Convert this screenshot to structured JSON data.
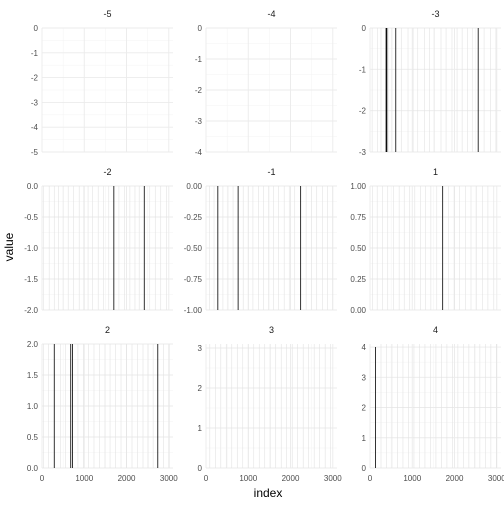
{
  "chart_data": {
    "type": "faceted-spike",
    "xlabel": "index",
    "ylabel": "value",
    "xlim": [
      0,
      3100
    ],
    "x_ticks": [
      0,
      1000,
      2000,
      3000
    ],
    "x_tick_labels": [
      "0",
      "1000",
      "2000",
      "3000"
    ],
    "panels": [
      {
        "label": "-5",
        "ylim": [
          -5,
          0
        ],
        "y_ticks": [
          0,
          -1,
          -2,
          -3,
          -4,
          -5
        ],
        "y_tick_labels": [
          "0",
          "-1",
          "-2",
          "-3",
          "-4",
          "-5"
        ],
        "show_x_ticks": false,
        "spikes": [],
        "faint_x": []
      },
      {
        "label": "-4",
        "ylim": [
          -4,
          0
        ],
        "y_ticks": [
          0,
          -1,
          -2,
          -3,
          -4
        ],
        "y_tick_labels": [
          "0",
          "-1",
          "-2",
          "-3",
          "-4"
        ],
        "show_x_ticks": false,
        "spikes": [],
        "faint_x": []
      },
      {
        "label": "-3",
        "ylim": [
          -3,
          0
        ],
        "y_ticks": [
          0,
          -1,
          -2,
          -3
        ],
        "y_tick_labels": [
          "0",
          "-1",
          "-2",
          "-3"
        ],
        "show_x_ticks": false,
        "spikes": [
          {
            "x": 380,
            "value": -3
          },
          {
            "x": 400,
            "value": -3
          },
          {
            "x": 610,
            "value": -3
          },
          {
            "x": 2560,
            "value": -3
          }
        ],
        "faint_x": [
          50,
          180,
          260,
          430,
          520,
          740,
          900,
          1020,
          1130,
          1290,
          1410,
          1520,
          1680,
          1800,
          1940,
          2060,
          2180,
          2310,
          2420,
          2700,
          2850,
          2980
        ]
      },
      {
        "label": "-2",
        "ylim": [
          -2,
          0
        ],
        "y_ticks": [
          0,
          -0.5,
          -1,
          -1.5,
          -2
        ],
        "y_tick_labels": [
          "0.0",
          "-0.5",
          "-1.0",
          "-1.5",
          "-2.0"
        ],
        "show_x_ticks": false,
        "spikes": [
          {
            "x": 1700,
            "value": -2
          },
          {
            "x": 2420,
            "value": -2
          }
        ],
        "faint_x": [
          30,
          170,
          290,
          390,
          500,
          620,
          750,
          880,
          990,
          1090,
          1200,
          1330,
          1460,
          1580,
          1820,
          1950,
          2080,
          2200,
          2300,
          2550,
          2680,
          2810,
          2950
        ]
      },
      {
        "label": "-1",
        "ylim": [
          -1,
          0
        ],
        "y_ticks": [
          0,
          -0.25,
          -0.5,
          -0.75,
          -1
        ],
        "y_tick_labels": [
          "0.00",
          "-0.25",
          "-0.50",
          "-0.75",
          "-1.00"
        ],
        "show_x_ticks": false,
        "spikes": [
          {
            "x": 280,
            "value": -1
          },
          {
            "x": 760,
            "value": -1
          },
          {
            "x": 2240,
            "value": -1
          }
        ],
        "faint_x": [
          80,
          190,
          400,
          520,
          640,
          880,
          1000,
          1110,
          1240,
          1360,
          1480,
          1600,
          1720,
          1850,
          1970,
          2100,
          2370,
          2500,
          2620,
          2760,
          2880,
          3000
        ]
      },
      {
        "label": "1",
        "ylim": [
          0,
          1
        ],
        "y_ticks": [
          0,
          0.25,
          0.5,
          0.75,
          1
        ],
        "y_tick_labels": [
          "0.00",
          "0.25",
          "0.50",
          "0.75",
          "1.00"
        ],
        "show_x_ticks": false,
        "spikes": [
          {
            "x": 1720,
            "value": 1
          }
        ],
        "faint_x": [
          60,
          170,
          300,
          420,
          560,
          690,
          810,
          940,
          1060,
          1190,
          1310,
          1440,
          1580,
          1860,
          1990,
          2120,
          2260,
          2390,
          2520,
          2660,
          2790,
          2930
        ]
      },
      {
        "label": "2",
        "ylim": [
          0,
          2
        ],
        "y_ticks": [
          0,
          0.5,
          1,
          1.5,
          2
        ],
        "y_tick_labels": [
          "0.0",
          "0.5",
          "1.0",
          "1.5",
          "2.0"
        ],
        "show_x_ticks": true,
        "spikes": [
          {
            "x": 290,
            "value": 2
          },
          {
            "x": 680,
            "value": 2
          },
          {
            "x": 720,
            "value": 2
          },
          {
            "x": 2740,
            "value": 2
          }
        ],
        "faint_x": [
          40,
          150,
          440,
          560,
          850,
          980,
          1100,
          1230,
          1360,
          1490,
          1610,
          1740,
          1870,
          2000,
          2130,
          2260,
          2390,
          2510,
          2630,
          2880,
          3010
        ]
      },
      {
        "label": "3",
        "ylim": [
          0,
          3.1
        ],
        "y_ticks": [
          0,
          1,
          2,
          3
        ],
        "y_tick_labels": [
          "0",
          "1",
          "2",
          "3"
        ],
        "show_x_ticks": true,
        "spikes": [],
        "faint_x": [
          90,
          220,
          350,
          480,
          610,
          740,
          870,
          1000,
          1130,
          1260,
          1390,
          1520,
          1650,
          1780,
          1910,
          2040,
          2170,
          2300,
          2430,
          2560,
          2690,
          2820,
          2950
        ]
      },
      {
        "label": "4",
        "ylim": [
          0,
          4.1
        ],
        "y_ticks": [
          0,
          1,
          2,
          3,
          4
        ],
        "y_tick_labels": [
          "0",
          "1",
          "2",
          "3",
          "4"
        ],
        "show_x_ticks": true,
        "spikes": [
          {
            "x": 130,
            "value": 4
          }
        ],
        "faint_x": [
          260,
          390,
          520,
          650,
          780,
          910,
          1040,
          1170,
          1300,
          1430,
          1560,
          1690,
          1820,
          1950,
          2080,
          2210,
          2340,
          2470,
          2600,
          2730,
          2860,
          2990
        ]
      }
    ],
    "grid": true,
    "colors": {
      "spike": "#000000",
      "grid": "#ebebeb",
      "faint": "#e2e2e2",
      "text": "#4d4d4d",
      "axis_title": "#000000"
    }
  }
}
